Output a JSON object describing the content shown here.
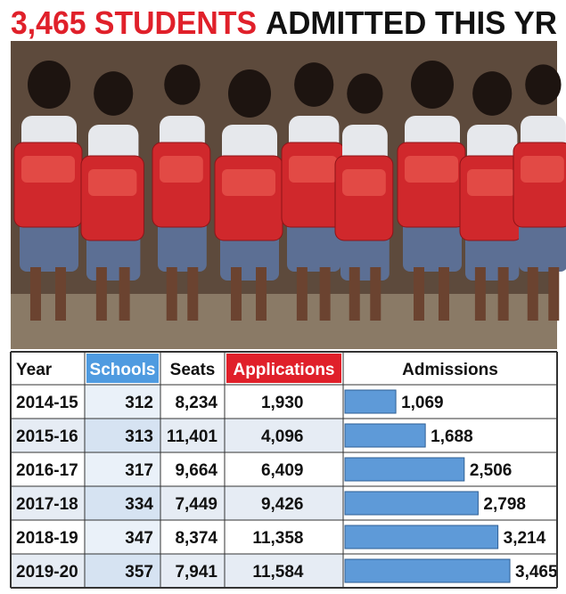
{
  "title": {
    "highlight": "3,465 STUDENTS",
    "rest": "ADMITTED THIS YR"
  },
  "table": {
    "header": [
      "Year",
      "Schools",
      "Seats",
      "Applications",
      "Admissions"
    ],
    "rows": [
      [
        "2014-15",
        312,
        "8,234",
        "1,930"
      ],
      [
        "2015-16",
        313,
        "11,401",
        "4,096"
      ],
      [
        "2016-17",
        317,
        "9,664",
        "6,409"
      ],
      [
        "2017-18",
        334,
        "7,449",
        "9,426"
      ],
      [
        "2018-19",
        347,
        "8,374",
        "11,358"
      ],
      [
        "2019-20",
        357,
        "7,941",
        "11,584"
      ]
    ],
    "admissions": {
      "values": [
        1069,
        1688,
        2506,
        2798,
        3214,
        3465
      ],
      "value_labels": [
        "1,069",
        "1,688",
        "2,506",
        "2,798",
        "3,214",
        "3,465"
      ]
    }
  }
}
